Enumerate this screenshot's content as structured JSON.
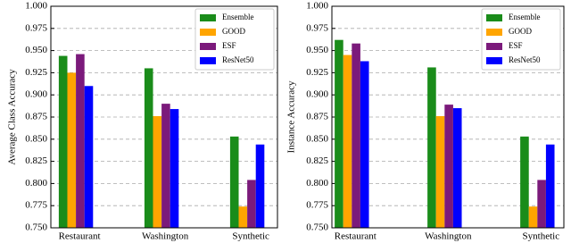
{
  "chart_data": [
    {
      "type": "bar",
      "ylabel": "Average Class Accuracy",
      "categories": [
        "Restaurant",
        "Washington",
        "Synthetic"
      ],
      "series": [
        {
          "name": "Ensemble",
          "color": "#1a8c1a",
          "values": [
            0.944,
            0.93,
            0.853
          ]
        },
        {
          "name": "GOOD",
          "color": "#ffa500",
          "values": [
            0.925,
            0.876,
            0.774
          ]
        },
        {
          "name": "ESF",
          "color": "#7b1a7b",
          "values": [
            0.946,
            0.89,
            0.804
          ]
        },
        {
          "name": "ResNet50",
          "color": "#0000ff",
          "values": [
            0.91,
            0.884,
            0.844
          ]
        }
      ],
      "ylim": [
        0.75,
        1.0
      ],
      "yticks": [
        {
          "value": 0.75,
          "label": "0.750"
        },
        0.775,
        {
          "value": 0.8,
          "label": "0.800"
        },
        0.825,
        {
          "value": 0.85,
          "label": "0.850"
        },
        0.875,
        {
          "value": 0.9,
          "label": "0.900"
        },
        0.925,
        {
          "value": 0.95,
          "label": "0.950"
        },
        0.975,
        {
          "value": 1.0,
          "label": "1.000"
        }
      ],
      "grid": true,
      "legend": "upper right"
    },
    {
      "type": "bar",
      "ylabel": "Instance Accuracy",
      "categories": [
        "Restaurant",
        "Washington",
        "Synthetic"
      ],
      "series": [
        {
          "name": "Ensemble",
          "color": "#1a8c1a",
          "values": [
            0.962,
            0.931,
            0.853
          ]
        },
        {
          "name": "GOOD",
          "color": "#ffa500",
          "values": [
            0.945,
            0.876,
            0.774
          ]
        },
        {
          "name": "ESF",
          "color": "#7b1a7b",
          "values": [
            0.958,
            0.889,
            0.804
          ]
        },
        {
          "name": "ResNet50",
          "color": "#0000ff",
          "values": [
            0.938,
            0.885,
            0.844
          ]
        }
      ],
      "ylim": [
        0.75,
        1.0
      ],
      "yticks": [
        {
          "value": 0.75,
          "label": "0.750"
        },
        0.775,
        {
          "value": 0.8,
          "label": "0.800"
        },
        0.825,
        {
          "value": 0.85,
          "label": "0.850"
        },
        0.875,
        {
          "value": 0.9,
          "label": "0.900"
        },
        0.925,
        {
          "value": 0.95,
          "label": "0.950"
        },
        0.975,
        {
          "value": 1.0,
          "label": "1.000"
        }
      ],
      "grid": true,
      "legend": "upper right"
    }
  ]
}
